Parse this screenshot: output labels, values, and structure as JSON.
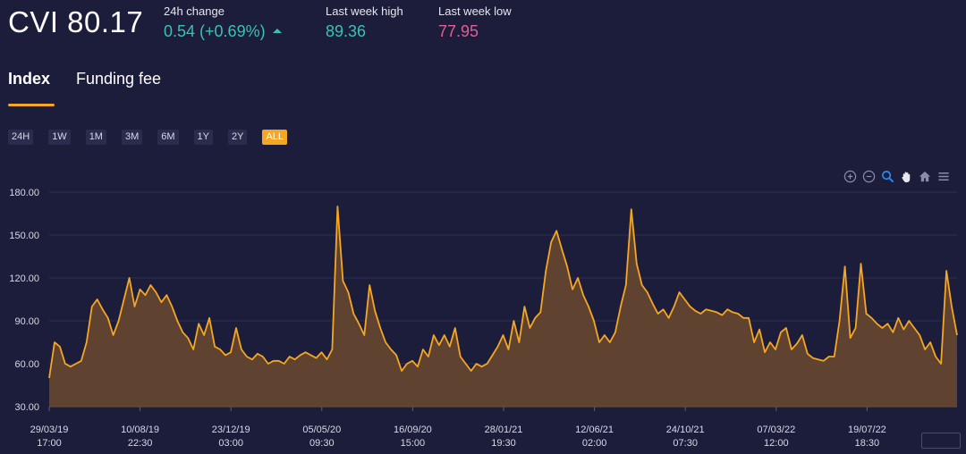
{
  "header": {
    "title": "CVI 80.17",
    "change_label": "24h change",
    "change_value": "0.54 (+0.69%)",
    "high_label": "Last week high",
    "high_value": "89.36",
    "low_label": "Last week low",
    "low_value": "77.95"
  },
  "tabs": [
    {
      "label": "Index",
      "active": true
    },
    {
      "label": "Funding fee",
      "active": false
    }
  ],
  "ranges": [
    "24H",
    "1W",
    "1M",
    "3M",
    "6M",
    "1Y",
    "2Y",
    "ALL"
  ],
  "active_range": "ALL",
  "toolbar_icons": [
    "zoom-in-icon",
    "zoom-out-icon",
    "zoom-select-icon",
    "pan-hand-icon",
    "home-icon",
    "menu-icon"
  ],
  "colors": {
    "background": "#1c1d3b",
    "line": "#f5a623",
    "fill": "#6b4a2f",
    "positive": "#3ac2b3",
    "negative": "#e35f93"
  },
  "chart_data": {
    "type": "area",
    "title": "",
    "xlabel": "",
    "ylabel": "",
    "ylim": [
      30,
      180
    ],
    "yticks": [
      "30.00",
      "60.00",
      "90.00",
      "120.00",
      "150.00",
      "180.00"
    ],
    "xticks": [
      {
        "date": "29/03/19",
        "time": "17:00"
      },
      {
        "date": "10/08/19",
        "time": "22:30"
      },
      {
        "date": "23/12/19",
        "time": "03:00"
      },
      {
        "date": "05/05/20",
        "time": "09:30"
      },
      {
        "date": "16/09/20",
        "time": "15:00"
      },
      {
        "date": "28/01/21",
        "time": "19:30"
      },
      {
        "date": "12/06/21",
        "time": "02:00"
      },
      {
        "date": "24/10/21",
        "time": "07:30"
      },
      {
        "date": "07/03/22",
        "time": "12:00"
      },
      {
        "date": "19/07/22",
        "time": "18:30"
      }
    ],
    "grid": true,
    "series": [
      {
        "values": [
          50,
          75,
          72,
          60,
          58,
          60,
          62,
          75,
          100,
          105,
          98,
          92,
          80,
          90,
          105,
          120,
          100,
          112,
          108,
          115,
          110,
          103,
          108,
          100,
          90,
          82,
          78,
          70,
          88,
          80,
          92,
          72,
          70,
          66,
          68,
          85,
          70,
          65,
          63,
          67,
          65,
          60,
          62,
          62,
          60,
          65,
          63,
          66,
          68,
          66,
          64,
          68,
          63,
          70,
          170,
          118,
          110,
          95,
          88,
          80,
          115,
          97,
          85,
          75,
          70,
          66,
          55,
          60,
          62,
          58,
          70,
          65,
          80,
          73,
          80,
          72,
          85,
          65,
          60,
          55,
          60,
          58,
          60,
          66,
          72,
          80,
          70,
          90,
          75,
          100,
          85,
          92,
          96,
          125,
          145,
          153,
          140,
          128,
          112,
          120,
          108,
          100,
          90,
          75,
          80,
          75,
          82,
          100,
          115,
          168,
          130,
          115,
          110,
          102,
          95,
          98,
          92,
          100,
          110,
          105,
          100,
          97,
          95,
          98,
          97,
          96,
          94,
          98,
          96,
          95,
          92,
          92,
          75,
          84,
          68,
          75,
          70,
          82,
          85,
          70,
          74,
          80,
          67,
          64,
          63,
          62,
          65,
          65,
          90,
          128,
          78,
          85,
          130,
          95,
          92,
          88,
          85,
          88,
          82,
          92,
          84,
          90,
          85,
          80,
          70,
          75,
          65,
          60,
          125,
          100,
          80
        ]
      }
    ]
  }
}
